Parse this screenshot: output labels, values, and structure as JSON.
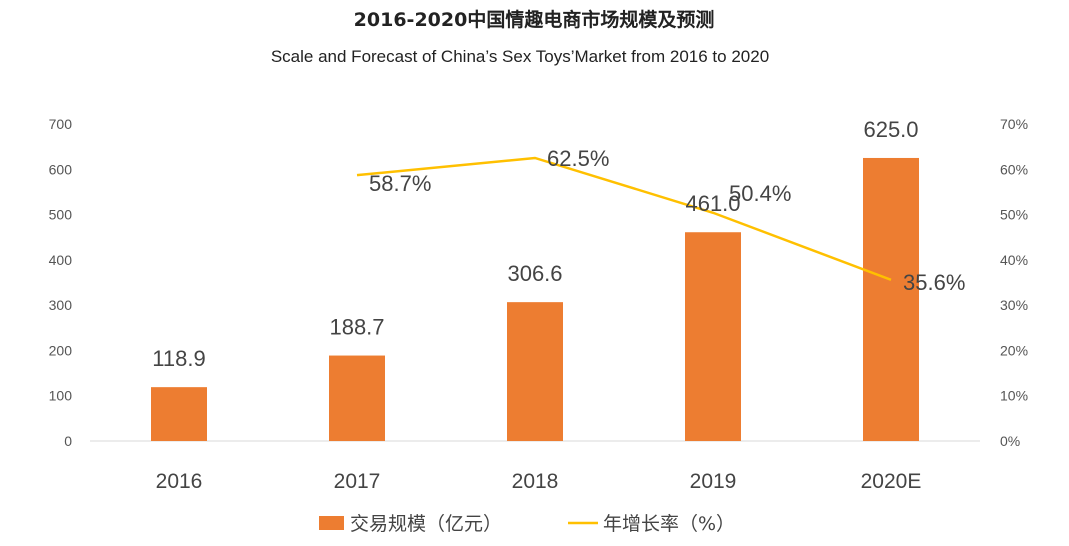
{
  "chart_data": {
    "type": "bar",
    "title": "2016-2020中国情趣电商市场规模及预测",
    "subtitle": "Scale and Forecast of China’s Sex Toys’Market from 2016 to 2020",
    "categories": [
      "2016",
      "2017",
      "2018",
      "2019",
      "2020E"
    ],
    "series": [
      {
        "name": "交易规模（亿元）",
        "type": "bar",
        "axis": "left",
        "color": "#ED7D31",
        "values": [
          118.9,
          188.7,
          306.6,
          461.0,
          625.0
        ],
        "labels": [
          "118.9",
          "188.7",
          "306.6",
          "461.0",
          "625.0"
        ]
      },
      {
        "name": "年增长率（%）",
        "type": "line",
        "axis": "right",
        "color": "#FFC000",
        "values": [
          null,
          58.7,
          62.5,
          50.4,
          35.6
        ],
        "labels": [
          "",
          "58.7%",
          "62.5%",
          "50.4%",
          "35.6%"
        ]
      }
    ],
    "y_left": {
      "range": [
        0,
        700
      ],
      "ticks": [
        "0",
        "100",
        "200",
        "300",
        "400",
        "500",
        "600",
        "700"
      ]
    },
    "y_right": {
      "range": [
        0,
        70
      ],
      "ticks": [
        "0%",
        "10%",
        "20%",
        "30%",
        "40%",
        "50%",
        "60%",
        "70%"
      ]
    },
    "grid": false,
    "legend_position": "bottom"
  }
}
